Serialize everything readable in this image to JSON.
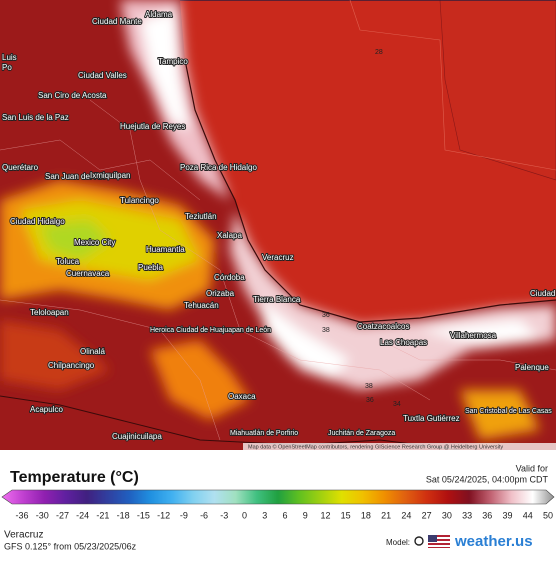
{
  "map": {
    "cities": [
      "Ciudad Mante",
      "Aldama",
      "Tampico",
      "Luis",
      "Po",
      "San Ciro de Acosta",
      "Ciudad Valles",
      "San Luis de la Paz",
      "Huejutla de Reyes",
      "Poza Rica de Hidalgo",
      "Querétaro",
      "San Juan del Río",
      "Ixmiquilpan",
      "Tulancingo",
      "Teziutlán",
      "Ciudad Hidalgo",
      "Mexico City",
      "Toluca",
      "Cuernavaca",
      "Huamantla",
      "Puebla",
      "Xalapa",
      "Veracruz",
      "Córdoba",
      "Orizaba",
      "Tehuacán",
      "Tierra Blanca",
      "Teloloapan",
      "Heroica Ciudad de Huajuapan de León",
      "Chilpancingo",
      "Olinalá",
      "Acapulco",
      "Oaxaca",
      "Miahuatlán de Porfirio",
      "Juchitán de Zaragoza",
      "Tuxtla Gutiérrez",
      "San Cristobal de Las Casas",
      "Coatzacoalcos",
      "Las Choapas",
      "Villahermosa",
      "Palenque",
      "Ciudad del Carm",
      "Cuajinicuilapa"
    ],
    "contour_labels": [
      "28",
      "36",
      "38",
      "38",
      "36",
      "34"
    ],
    "attribution": "Map data © OpenStreetMap contributors, rendering GIScience Research Group @ Heidelberg University"
  },
  "legend": {
    "title": "Temperature (°C)",
    "valid_label": "Valid for",
    "valid_time": "Sat 05/24/2025, 04:00pm CDT",
    "ticks": [
      -36,
      -30,
      -27,
      -24,
      -21,
      -18,
      -15,
      -12,
      -9,
      -6,
      -3,
      0,
      3,
      6,
      9,
      12,
      15,
      18,
      21,
      24,
      27,
      30,
      33,
      36,
      39,
      44,
      50
    ],
    "colors": [
      "#f070f0",
      "#c040d0",
      "#9020b0",
      "#6020a0",
      "#402080",
      "#3040a0",
      "#2060c0",
      "#2090e0",
      "#40b0f0",
      "#80d0f0",
      "#b0e0f0",
      "#a0e0c0",
      "#40c080",
      "#20a040",
      "#60c020",
      "#a0d010",
      "#e0e000",
      "#f0c000",
      "#f09000",
      "#e06010",
      "#d03010",
      "#b01010",
      "#801020",
      "#c06070",
      "#f0c0c8",
      "#ffffff",
      "#909090"
    ]
  },
  "footer": {
    "location": "Veracruz",
    "model_run": "GFS 0.125° from 05/23/2025/06z",
    "model_label": "Model:",
    "brand": "weather.us"
  }
}
